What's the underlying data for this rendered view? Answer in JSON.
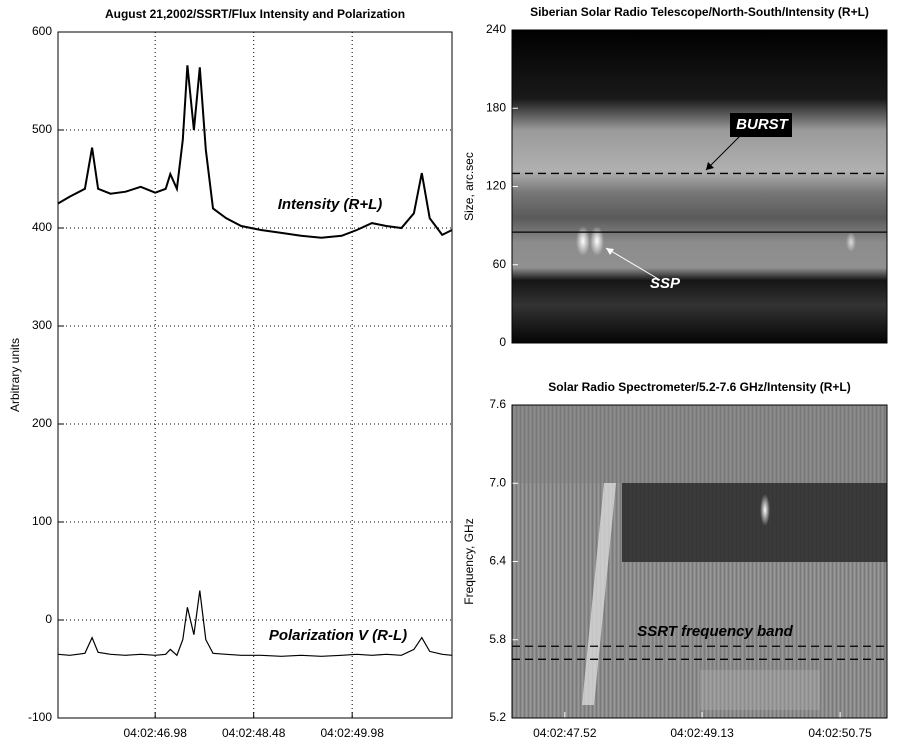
{
  "chart_data": [
    {
      "type": "line",
      "title": "August 21,2002/SSRT/Flux Intensity and Polarization",
      "ylabel": "Arbitrary units",
      "x": [
        45.5,
        45.68,
        45.91,
        46.02,
        46.11,
        46.3,
        46.53,
        46.76,
        46.98,
        47.14,
        47.21,
        47.31,
        47.4,
        47.47,
        47.57,
        47.66,
        47.75,
        47.86,
        48.06,
        48.29,
        48.59,
        48.9,
        49.2,
        49.51,
        49.82,
        50.05,
        50.28,
        50.5,
        50.73,
        50.92,
        51.04,
        51.16,
        51.35,
        51.5
      ],
      "xlim": [
        45.5,
        51.5
      ],
      "xticks": [
        {
          "value": 46.98,
          "label": "04:02:46.98"
        },
        {
          "value": 48.48,
          "label": "04:02:48.48"
        },
        {
          "value": 49.98,
          "label": "04:02:49.98"
        }
      ],
      "ylim": [
        -100,
        600
      ],
      "yticks": [
        -100,
        0,
        100,
        200,
        300,
        400,
        500,
        600
      ],
      "grid": true,
      "series": [
        {
          "name": "Intensity (R+L)",
          "color": "#000000",
          "values": [
            425,
            432,
            440,
            482,
            440,
            435,
            437,
            442,
            436,
            440,
            455,
            440,
            490,
            566,
            500,
            564,
            480,
            420,
            410,
            402,
            398,
            395,
            392,
            390,
            392,
            398,
            405,
            402,
            400,
            415,
            456,
            410,
            393,
            398
          ]
        },
        {
          "name": "Polarization V (R-L)",
          "color": "#000000",
          "values": [
            -35,
            -36,
            -34,
            -18,
            -33,
            -35,
            -36,
            -35,
            -36,
            -35,
            -30,
            -36,
            -20,
            13,
            -15,
            30,
            -20,
            -34,
            -35,
            -36,
            -36,
            -37,
            -36,
            -37,
            -36,
            -35,
            -36,
            -35,
            -36,
            -30,
            -18,
            -32,
            -35,
            -36
          ]
        }
      ]
    },
    {
      "type": "image",
      "title": "Siberian Solar Radio Telescope/North-South/Intensity (R+L)",
      "ylabel": "Size, arc.sec",
      "ylim": [
        0,
        240
      ],
      "yticks": [
        0,
        60,
        120,
        180,
        240
      ],
      "hlines": [
        {
          "value": 130,
          "style": "dashed"
        },
        {
          "value": 85,
          "style": "solid"
        }
      ],
      "annotations": [
        "BURST",
        "SSP"
      ]
    },
    {
      "type": "image",
      "title": "Solar Radio Spectrometer/5.2-7.6 GHz/Intensity (R+L)",
      "ylabel": "Frequency, GHz",
      "xlim": [
        46.9,
        51.3
      ],
      "xticks": [
        {
          "value": 47.52,
          "label": "04:02:47.52"
        },
        {
          "value": 49.13,
          "label": "04:02:49.13"
        },
        {
          "value": 50.75,
          "label": "04:02:50.75"
        }
      ],
      "ylim": [
        5.2,
        7.6
      ],
      "yticks": [
        {
          "value": 5.2,
          "label": "5.2"
        },
        {
          "value": 5.8,
          "label": "5.8"
        },
        {
          "value": 6.4,
          "label": "6.4"
        },
        {
          "value": 7,
          "label": "7.0"
        },
        {
          "value": 7.6,
          "label": "7.6"
        }
      ],
      "hlines": [
        {
          "value": 5.75,
          "style": "dashed"
        },
        {
          "value": 5.65,
          "style": "dashed"
        }
      ],
      "annotations": [
        "SSRT frequency band"
      ]
    }
  ]
}
